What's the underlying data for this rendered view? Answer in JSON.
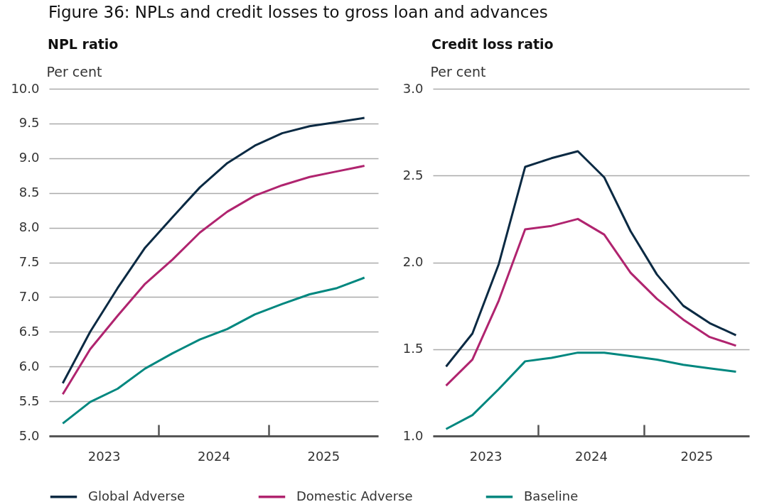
{
  "chart_data": [
    {
      "type": "line",
      "title": "Figure 36: NPLs and credit losses to gross loan and advances",
      "subtitle": "NPL ratio",
      "ylabel": "Per cent",
      "x": [
        2023.125,
        2023.375,
        2023.625,
        2023.875,
        2024.125,
        2024.375,
        2024.625,
        2024.875,
        2025.125,
        2025.375,
        2025.625,
        2025.875
      ],
      "xlim": [
        2023,
        2026
      ],
      "xticks": [
        {
          "value": 2023.5,
          "label": "2023"
        },
        {
          "value": 2024,
          "label": null
        },
        {
          "value": 2024.5,
          "label": "2024"
        },
        {
          "value": 2025,
          "label": null
        },
        {
          "value": 2025.5,
          "label": "2025"
        }
      ],
      "ylim": [
        5,
        10
      ],
      "yticks": [
        {
          "value": 5,
          "label": "5.0"
        },
        5.5,
        {
          "value": 6,
          "label": "6.0"
        },
        6.5,
        {
          "value": 7,
          "label": "7.0"
        },
        7.5,
        {
          "value": 8,
          "label": "8.0"
        },
        8.5,
        {
          "value": 9,
          "label": "9.0"
        },
        9.5,
        {
          "value": 10,
          "label": "10.0"
        }
      ],
      "grid": "y",
      "legend": "bottom",
      "series": [
        {
          "name": "Global Adverse",
          "color": "#0b2a43",
          "values": [
            5.76,
            6.5,
            7.13,
            7.71,
            8.15,
            8.58,
            8.93,
            9.18,
            9.36,
            9.46,
            9.52,
            9.58
          ]
        },
        {
          "name": "Domestic Adverse",
          "color": "#b0246f",
          "values": [
            5.6,
            6.25,
            6.73,
            7.19,
            7.54,
            7.93,
            8.23,
            8.46,
            8.61,
            8.73,
            8.81,
            8.89
          ]
        },
        {
          "name": "Baseline",
          "color": "#00877f",
          "values": [
            5.18,
            5.49,
            5.68,
            5.97,
            6.19,
            6.39,
            6.54,
            6.75,
            6.9,
            7.04,
            7.13,
            7.28
          ]
        }
      ]
    },
    {
      "type": "line",
      "subtitle": "Credit loss ratio",
      "ylabel": "Per cent",
      "x": [
        2023.125,
        2023.375,
        2023.625,
        2023.875,
        2024.125,
        2024.375,
        2024.625,
        2024.875,
        2025.125,
        2025.375,
        2025.625,
        2025.875
      ],
      "xlim": [
        2023,
        2026
      ],
      "xticks": [
        {
          "value": 2023.5,
          "label": "2023"
        },
        {
          "value": 2024,
          "label": null
        },
        {
          "value": 2024.5,
          "label": "2024"
        },
        {
          "value": 2025,
          "label": null
        },
        {
          "value": 2025.5,
          "label": "2025"
        }
      ],
      "ylim": [
        1,
        3
      ],
      "yticks": [
        {
          "value": 1,
          "label": "1.0"
        },
        1.5,
        {
          "value": 2,
          "label": "2.0"
        },
        2.5,
        {
          "value": 3,
          "label": "3.0"
        }
      ],
      "grid": "y",
      "series": [
        {
          "color": "#0b2a43",
          "values": [
            1.4,
            1.59,
            1.99,
            2.55,
            2.6,
            2.64,
            2.49,
            2.18,
            1.93,
            1.75,
            1.65,
            1.58
          ]
        },
        {
          "color": "#b0246f",
          "values": [
            1.29,
            1.44,
            1.78,
            2.19,
            2.21,
            2.25,
            2.16,
            1.94,
            1.79,
            1.67,
            1.57,
            1.52
          ]
        },
        {
          "color": "#00877f",
          "values": [
            1.04,
            1.12,
            1.27,
            1.43,
            1.45,
            1.48,
            1.48,
            1.46,
            1.44,
            1.41,
            1.39,
            1.37
          ]
        }
      ]
    }
  ]
}
